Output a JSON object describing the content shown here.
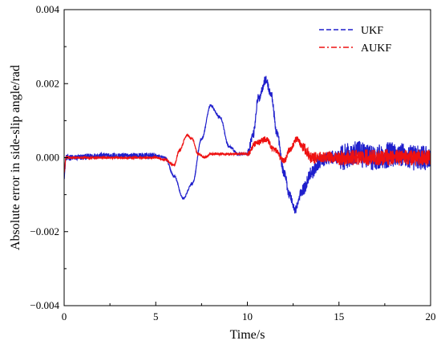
{
  "chart_data": {
    "type": "line",
    "xlabel": "Time/s",
    "ylabel": "Absolute error in side-slip angle/rad",
    "xlim": [
      0,
      20
    ],
    "ylim": [
      -0.004,
      0.004
    ],
    "x_ticks": [
      "0",
      "5",
      "10",
      "15",
      "20"
    ],
    "x_tick_values": [
      0,
      5,
      10,
      15,
      20
    ],
    "y_ticks": [
      "−0.004",
      "−0.002",
      "0.000",
      "0.002",
      "0.004"
    ],
    "y_tick_values": [
      -0.004,
      -0.002,
      0.0,
      0.002,
      0.004
    ],
    "grid": false,
    "legend_position": "top-right",
    "series": [
      {
        "name": "UKF",
        "color": "#1f1fcc",
        "dash": "dashed",
        "noise": [
          {
            "from": 0,
            "to": 5,
            "amp": 8e-05
          },
          {
            "from": 5,
            "to": 10,
            "amp": 3e-05
          },
          {
            "from": 10,
            "to": 13,
            "amp": 0.00012
          },
          {
            "from": 13,
            "to": 15,
            "amp": 0.00018
          },
          {
            "from": 15,
            "to": 20,
            "amp": 0.00035
          }
        ],
        "x": [
          0,
          0.1,
          0.5,
          2,
          4,
          5,
          5.5,
          6,
          6.5,
          7,
          7.5,
          8,
          8.5,
          9,
          9.5,
          10,
          10.3,
          10.6,
          11,
          11.3,
          11.6,
          12,
          12.3,
          12.6,
          13,
          13.5,
          14,
          14.5,
          15,
          16,
          17,
          18,
          19,
          20
        ],
        "y": [
          -0.0005,
          0.0,
          0.0,
          5e-05,
          5e-05,
          5e-05,
          0.0,
          -0.0005,
          -0.0011,
          -0.0007,
          0.0005,
          0.0014,
          0.0011,
          0.0003,
          0.0001,
          0.0001,
          0.0006,
          0.0016,
          0.0021,
          0.0017,
          0.0007,
          -0.0004,
          -0.001,
          -0.0014,
          -0.0009,
          -0.0004,
          -0.0001,
          0.0,
          0.0,
          0.0001,
          0.0,
          0.0001,
          0.0,
          0.0
        ]
      },
      {
        "name": "AUKF",
        "color": "#ee1111",
        "dash": "dashdot",
        "noise": [
          {
            "from": 0,
            "to": 5,
            "amp": 3e-05
          },
          {
            "from": 5,
            "to": 10,
            "amp": 3e-05
          },
          {
            "from": 10,
            "to": 13,
            "amp": 8e-05
          },
          {
            "from": 13,
            "to": 15,
            "amp": 0.00015
          },
          {
            "from": 15,
            "to": 20,
            "amp": 0.00022
          }
        ],
        "x": [
          0,
          0.1,
          0.5,
          2,
          4,
          5,
          5.5,
          6,
          6.3,
          6.7,
          7,
          7.3,
          7.7,
          8,
          9,
          10,
          10.5,
          11,
          11.5,
          12,
          12.3,
          12.7,
          13,
          13.5,
          14,
          15,
          16,
          17,
          18,
          19,
          20
        ],
        "y": [
          -0.0004,
          0.0,
          0.0,
          0.0,
          0.0,
          0.0,
          -5e-05,
          -0.0002,
          0.0002,
          0.0006,
          0.0005,
          0.0001,
          0.0,
          0.0001,
          0.0001,
          0.0001,
          0.0004,
          0.0005,
          0.0002,
          -0.0001,
          0.0002,
          0.0005,
          0.0003,
          0.0,
          0.0,
          0.0,
          0.0,
          0.0,
          0.0,
          0.0,
          0.0
        ]
      }
    ]
  }
}
